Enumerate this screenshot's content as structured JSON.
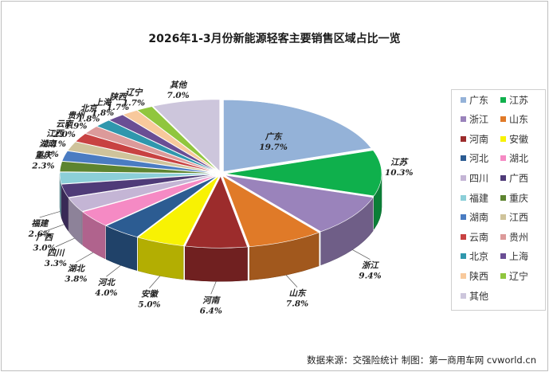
{
  "chart_data": {
    "type": "pie",
    "variant": "3d-exploded",
    "title": "2026年1-3月份新能源轻客主要销售区域占比一览",
    "legend_position": "right",
    "slices": [
      {
        "name": "广东",
        "value": 19.7,
        "label": "19.7%",
        "color": "#94b2d8"
      },
      {
        "name": "江苏",
        "value": 10.3,
        "label": "10.3%",
        "color": "#0fb04c"
      },
      {
        "name": "浙江",
        "value": 9.4,
        "label": "9.4%",
        "color": "#9a83bb"
      },
      {
        "name": "山东",
        "value": 7.8,
        "label": "7.8%",
        "color": "#e07a28"
      },
      {
        "name": "河南",
        "value": 6.4,
        "label": "6.4%",
        "color": "#9c2c2c"
      },
      {
        "name": "安徽",
        "value": 5.0,
        "label": "5.0%",
        "color": "#f8f203"
      },
      {
        "name": "河北",
        "value": 4.0,
        "label": "4.0%",
        "color": "#2c5c92"
      },
      {
        "name": "湖北",
        "value": 3.8,
        "label": "3.8%",
        "color": "#f58ac4"
      },
      {
        "name": "四川",
        "value": 3.3,
        "label": "3.3%",
        "color": "#c4b5d5"
      },
      {
        "name": "广西",
        "value": 3.0,
        "label": "3.0%",
        "color": "#4f3b78"
      },
      {
        "name": "福建",
        "value": 2.6,
        "label": "2.6%",
        "color": "#8ccfd8"
      },
      {
        "name": "重庆",
        "value": 2.3,
        "label": "2.3%",
        "color": "#5d8430"
      },
      {
        "name": "湖南",
        "value": 2.3,
        "label": "2.3%",
        "color": "#4a7cc2"
      },
      {
        "name": "江西",
        "value": 2.1,
        "label": "2.1%",
        "color": "#cfc39b"
      },
      {
        "name": "云南",
        "value": 2.0,
        "label": "2.0%",
        "color": "#c84242"
      },
      {
        "name": "贵州",
        "value": 1.9,
        "label": "1.9%",
        "color": "#dc9a9a"
      },
      {
        "name": "北京",
        "value": 1.8,
        "label": "1.8%",
        "color": "#2f97ad"
      },
      {
        "name": "上海",
        "value": 1.8,
        "label": "1.8%",
        "color": "#6a4e94"
      },
      {
        "name": "陕西",
        "value": 1.7,
        "label": "1.7%",
        "color": "#f8c99c"
      },
      {
        "name": "辽宁",
        "value": 1.7,
        "label": "1.7%",
        "color": "#90c63e"
      },
      {
        "name": "其他",
        "value": 7.0,
        "label": "7.0%",
        "color": "#cdc6dc"
      }
    ]
  },
  "legend": [
    [
      "广东",
      "江苏"
    ],
    [
      "浙江",
      "山东"
    ],
    [
      "河南",
      "安徽"
    ],
    [
      "河北",
      "湖北"
    ],
    [
      "四川",
      "广西"
    ],
    [
      "福建",
      "重庆"
    ],
    [
      "湖南",
      "江西"
    ],
    [
      "云南",
      "贵州"
    ],
    [
      "北京",
      "上海"
    ],
    [
      "陕西",
      "辽宁"
    ],
    [
      "其他"
    ]
  ],
  "source_text": "数据来源：交强险统计   制图：第一商用车网 cvworld.cn"
}
